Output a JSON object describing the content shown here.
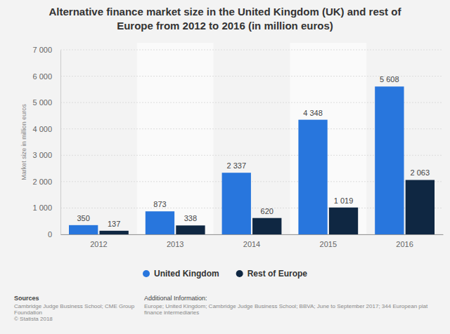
{
  "chart_data": {
    "type": "bar",
    "title": "Alternative finance market size in the United Kingdom (UK) and rest of Europe from 2012 to 2016 (in million euros)",
    "y_label": "Market size in million euros",
    "categories": [
      "2012",
      "2013",
      "2014",
      "2015",
      "2016"
    ],
    "series": [
      {
        "name": "United Kingdom",
        "color": "#2876dd",
        "values": [
          350,
          873,
          2337,
          4348,
          5608
        ],
        "value_labels": [
          "350",
          "873",
          "2 337",
          "4 348",
          "5 608"
        ]
      },
      {
        "name": "Rest of Europe",
        "color": "#0f2742",
        "values": [
          137,
          338,
          620,
          1019,
          2063
        ],
        "value_labels": [
          "137",
          "338",
          "620",
          "1 019",
          "2 063"
        ]
      }
    ],
    "ylim": [
      0,
      7000
    ],
    "yticks": [
      0,
      {
        "value": 1000,
        "label": "1 000"
      },
      {
        "value": 2000,
        "label": "2 000"
      },
      {
        "value": 3000,
        "label": "3 000"
      },
      {
        "value": 4000,
        "label": "4 000"
      },
      {
        "value": 5000,
        "label": "5 000"
      },
      {
        "value": 6000,
        "label": "6 000"
      },
      {
        "value": 7000,
        "label": "7 000"
      }
    ],
    "grid": true,
    "legend": "bottom",
    "data_labels": true,
    "sources_title": "Sources",
    "sources": [
      "Cambridge Judge Business School; CME Group",
      "Foundation"
    ],
    "copyright": "© Statista 2018",
    "additional_info_title": "Additional Information:",
    "additional_info": [
      "Europe; United Kingdom; Cambridge Judge Business School; BBVA; June to September 2017; 344 European plat",
      "finance intermediaries"
    ]
  }
}
